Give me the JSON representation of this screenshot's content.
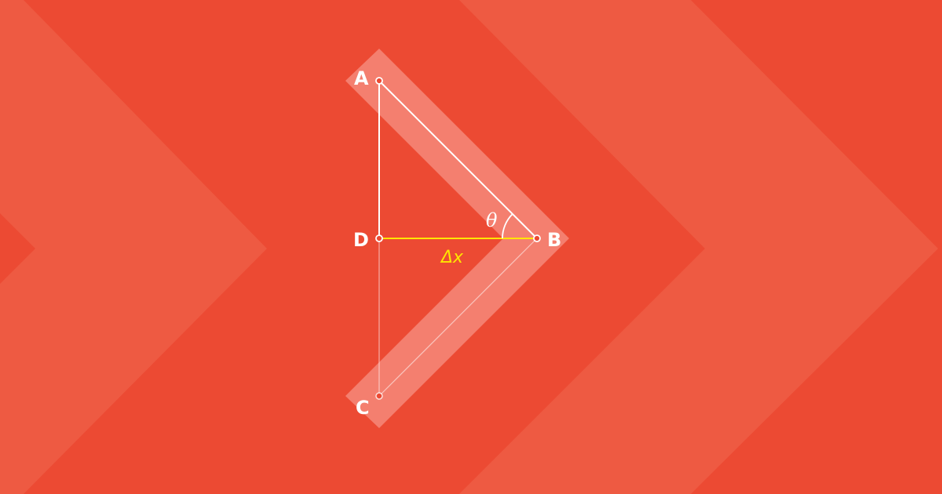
{
  "colors": {
    "background": "#ec4a33",
    "background_chevron": "#ee5a42",
    "arrow_band": "#f47f6f",
    "line": "#ffffff",
    "highlight": "#ffe600"
  },
  "points": {
    "a": "A",
    "b": "B",
    "c": "C",
    "d": "D"
  },
  "labels": {
    "angle": "θ",
    "distance": "Δx"
  }
}
